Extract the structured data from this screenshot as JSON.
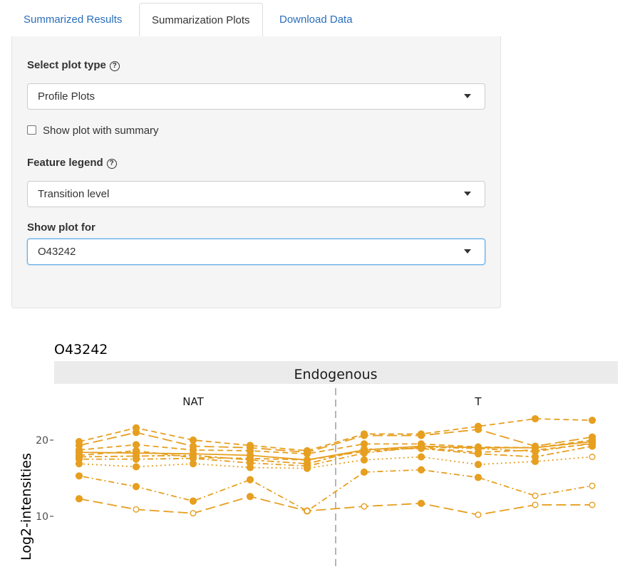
{
  "tabs": [
    {
      "label": "Summarized Results",
      "active": false
    },
    {
      "label": "Summarization Plots",
      "active": true
    },
    {
      "label": "Download Data",
      "active": false
    }
  ],
  "form": {
    "plot_type": {
      "label": "Select plot type",
      "help_icon": "question-circle-icon",
      "value": "Profile Plots"
    },
    "show_summary": {
      "label": "Show plot with summary",
      "checked": false
    },
    "feature_legend": {
      "label": "Feature legend",
      "help_icon": "question-circle-icon",
      "value": "Transition level"
    },
    "show_plot_for": {
      "label": "Show plot for",
      "value": "O43242"
    }
  },
  "chart_data": {
    "type": "line",
    "title": "O43242",
    "facet_label": "Endogenous",
    "group_labels": [
      "NAT",
      "T"
    ],
    "ylabel": "Log2-intensities",
    "yticks": [
      10,
      20
    ],
    "ylim": [
      4.5,
      25
    ],
    "x": [
      1,
      2,
      3,
      4,
      5,
      6,
      7,
      8,
      9,
      10
    ],
    "group_split_after": 5,
    "color": "#e69f20",
    "series": [
      {
        "values": [
          19.8,
          21.6,
          20.0,
          19.3,
          18.6,
          20.8,
          20.8,
          21.8,
          22.8,
          22.6
        ],
        "dash": "dashed",
        "open": []
      },
      {
        "values": [
          19.3,
          21.0,
          19.2,
          19.0,
          18.4,
          20.6,
          20.6,
          21.4,
          19.2,
          20.4
        ],
        "dash": "longdash",
        "open": []
      },
      {
        "values": [
          18.7,
          19.4,
          18.7,
          18.6,
          18.2,
          19.5,
          19.5,
          19.1,
          19.0,
          20.0
        ],
        "dash": "dashed",
        "open": []
      },
      {
        "values": [
          18.4,
          18.3,
          18.2,
          18.0,
          17.4,
          18.7,
          19.2,
          19.0,
          19.0,
          19.8
        ],
        "dash": "solid",
        "open": []
      },
      {
        "values": [
          18.0,
          18.6,
          17.7,
          17.6,
          17.4,
          18.5,
          19.0,
          18.4,
          18.7,
          19.5
        ],
        "dash": "dashed",
        "open": []
      },
      {
        "values": [
          17.8,
          17.9,
          18.0,
          17.4,
          16.9,
          18.8,
          18.9,
          18.2,
          17.8,
          19.2
        ],
        "dash": "twodash",
        "open": []
      },
      {
        "values": [
          17.5,
          17.5,
          17.6,
          17.0,
          16.6,
          18.3,
          19.1,
          18.9,
          18.5,
          19.6
        ],
        "dash": "dotdash",
        "open": []
      },
      {
        "values": [
          16.9,
          16.5,
          16.9,
          16.4,
          16.3,
          17.4,
          17.8,
          16.8,
          17.2,
          17.8
        ],
        "dash": "dotted",
        "open": [
          9
        ]
      },
      {
        "values": [
          15.3,
          13.9,
          12.0,
          14.8,
          10.7,
          15.8,
          16.1,
          15.1,
          12.7,
          14.0
        ],
        "dash": "dotdash",
        "open": [
          8,
          9
        ]
      },
      {
        "values": [
          12.3,
          10.9,
          10.4,
          12.6,
          10.7,
          11.3,
          11.7,
          10.2,
          11.5,
          11.5
        ],
        "dash": "longdash",
        "open": [
          1,
          2,
          4,
          5,
          7,
          8,
          9
        ]
      }
    ]
  }
}
